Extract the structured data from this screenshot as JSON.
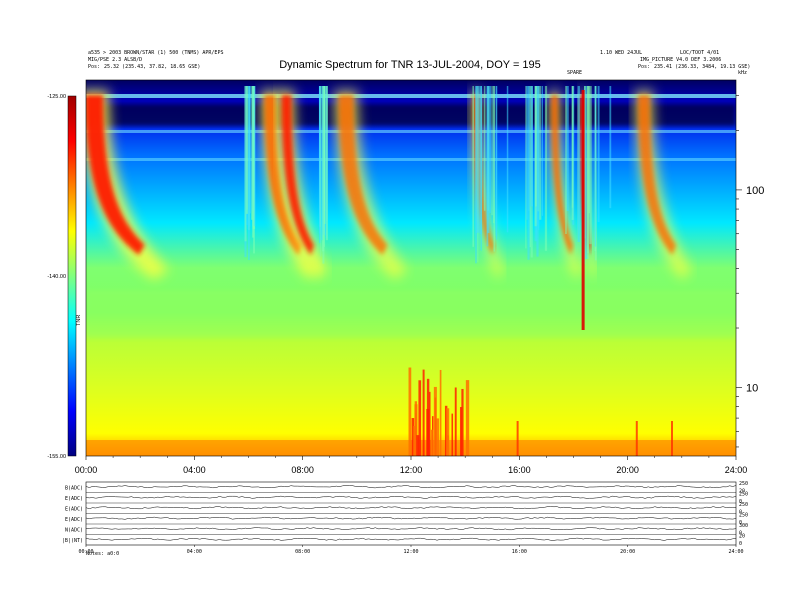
{
  "header": {
    "left_line1": "a535 > 2003 BROWN/STAR (1) 500 (TNMS) APR/EPS",
    "left_line2": "MIG/PSE 2.3 ALSB/D",
    "left_line3_label": "Pos:",
    "left_line3_value": "25.32 (235.43, 37.82, 18.65 GSE)",
    "right_line1": "1.10 WED 24JUL",
    "right_line2": "LOC/TOOT 4/01",
    "right_line3": "IMG_PICTURE V4.0 DEF 3.2006",
    "right_line4_label": "Pos:",
    "right_line4_value": "235.41 (236.33, 3484, 19.13 GSE)",
    "marker": "SPARE",
    "corner": "kHz"
  },
  "chart_data": {
    "type": "heatmap",
    "title": "Dynamic Spectrum for TNR 13-JUL-2004, DOY = 195",
    "x": {
      "ticks": [
        "00:00",
        "04:00",
        "08:00",
        "12:00",
        "16:00",
        "20:00",
        "24:00"
      ],
      "range_hours": [
        0,
        24
      ]
    },
    "y": {
      "scale": "log",
      "ticks": [
        10,
        100
      ],
      "unit": "kHz"
    },
    "colorbar": {
      "ticks": [
        "-125.00",
        "-140.00",
        "-155.00"
      ],
      "range": [
        -155,
        -125
      ],
      "label": "TNR",
      "colors": [
        "#00007f",
        "#0000ff",
        "#0080ff",
        "#00ffff",
        "#80ff80",
        "#ffff00",
        "#ff8000",
        "#ff0000",
        "#a00000"
      ]
    },
    "bursts": [
      {
        "t": 0.3,
        "width": 0.55,
        "level": 0.95
      },
      {
        "t": 6.8,
        "width": 0.35,
        "level": 0.88
      },
      {
        "t": 7.4,
        "width": 0.3,
        "level": 0.92
      },
      {
        "t": 9.6,
        "width": 0.45,
        "level": 0.8
      },
      {
        "t": 14.4,
        "width": 0.2,
        "level": 0.75
      },
      {
        "t": 17.3,
        "width": 0.2,
        "level": 0.85
      },
      {
        "t": 18.3,
        "width": 0.1,
        "level": 1.0
      },
      {
        "t": 20.6,
        "width": 0.35,
        "level": 0.8
      }
    ],
    "panels": [
      {
        "label": "B(ADC)",
        "right": [
          "250",
          "20"
        ]
      },
      {
        "label": "E(ADC)",
        "right": [
          "250",
          "0"
        ]
      },
      {
        "label": "E(ADC)",
        "right": [
          "250",
          "0"
        ]
      },
      {
        "label": "E(ADC)",
        "right": [
          "250",
          "0"
        ]
      },
      {
        "label": "N(ADC)",
        "right": [
          "300",
          "0"
        ]
      },
      {
        "label": "|B|(NT)",
        "right": [
          "20",
          "0"
        ]
      }
    ],
    "bottom_ticks": [
      "00:00",
      "04:00",
      "08:00",
      "12:00",
      "16:00",
      "20:00",
      "24:00"
    ],
    "footer": "Notes: a0:0"
  }
}
